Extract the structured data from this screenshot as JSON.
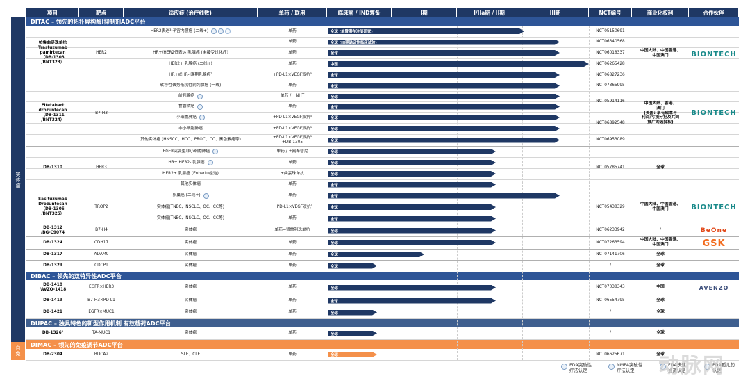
{
  "headers": [
    "项目",
    "靶点",
    "适应症 (治疗线数)",
    "单药 / 联用",
    "临床前 / IND筹备",
    "I期",
    "I/IIa期 / II期",
    "III期",
    "NCT编号",
    "商业化权利",
    "合作伙伴"
  ],
  "side_labels": {
    "solid": "实体瘤",
    "autoimmune": "自免"
  },
  "sections": {
    "ditac": "DITAC – 领先的拓扑异构酶I抑制剂ADC平台",
    "dibac": "DIBAC – 领先的双特异性ADC平台",
    "dupac": "DUPAC – 独具特色的新型作用机制 有效载荷ADC平台",
    "dimac": "DIMAC – 领先的免疫调节ADC平台"
  },
  "drugs": {
    "db1303": "帕鲁曲妥珠单抗\nTrastuzumab\npamirtecan\n（DB-1303\n/BNT323）",
    "db1311": "Elfetabart\ndrozuntecan\n（DB-1311\n/BNT324）",
    "db1310": "DB-1310",
    "db1305": "Sacituzumab\nDrozuntecan\n（DB-1305\n/BNT325）",
    "db1312": "DB-1312\n/BG-C9074",
    "db1324": "DB-1324",
    "db1317": "DB-1317",
    "db1329": "DB-1329",
    "db1418": "DB-1418\n/AVZO-1418",
    "db1419": "DB-1419",
    "db1421": "DB-1421",
    "db1326": "DB-1326⁴",
    "db2304": "DB-2304"
  },
  "targets": {
    "her2": "HER2",
    "b7h3": "B7-H3",
    "her3": "HER3",
    "trop2": "TROP2",
    "b7h4": "B7-H4",
    "cdh17": "CDH17",
    "adam9": "ADAM9",
    "cdcp1": "CDCP1",
    "egfr_her3": "EGFR×HER3",
    "b7h3_pdl1": "B7-H3×PD-L1",
    "egfr_muc1": "EGFR×MUC1",
    "ta_muc1": "TA-MUC1",
    "bdca2": "BDCA2"
  },
  "rights": {
    "cn_hk_mo": "中国大陆、中国香港、\n中国澳门",
    "cn_hk_mo_b7h3": "中国大陆、香港、\n澳门\n(美国: 享有成本与\n利润/亏损分担及共同\n推广的选择权)",
    "global": "全球",
    "slash": "/",
    "china": "中国"
  },
  "partners": {
    "biontech": "BIONTECH",
    "beone": "BeOne",
    "gsk": "GSK",
    "avenzo": "AVENZO"
  },
  "rows": [
    {
      "ind": "HER2表达³ 子宫内膜癌 (二线+)",
      "combo": "单药",
      "bar": "全球 (单臂潜在注册研究)",
      "nct": "NCT05150691"
    },
    {
      "ind": "",
      "combo": "单药",
      "bar": "全球 (III期确证性临床试验)",
      "nct": "NCT06340568"
    },
    {
      "ind": "HR+/HER2低表达 乳腺癌 (未接受过化疗)",
      "combo": "单药",
      "bar": "全球",
      "nct": "NCT06018337"
    },
    {
      "ind": "HER2+ 乳腺癌 (二线+)",
      "combo": "单药",
      "bar": "中国",
      "nct": "NCT06265428"
    },
    {
      "ind": "HR+或HR- 晚期乳腺癌²",
      "combo": "+PD-L1×VEGF双抗⁵",
      "bar": "全球",
      "nct": "NCT06827236"
    },
    {
      "ind": "转移性去势抵抗性前列腺癌 (一线)",
      "combo": "单药",
      "bar": "全球",
      "nct": "NCT07365995"
    },
    {
      "ind": "前列腺癌",
      "combo": "单药 / +NHT",
      "bar": "全球",
      "nct": ""
    },
    {
      "ind": "食管鳞癌",
      "combo": "单药",
      "bar": "全球",
      "nct": ""
    },
    {
      "ind": "小细胞肺癌",
      "combo": "+PD-L1×VEGF双抗⁵",
      "bar": "全球",
      "nct": ""
    },
    {
      "ind": "非小细胞肺癌",
      "combo": "+PD-L1×VEGF双抗⁵",
      "bar": "全球",
      "nct": ""
    },
    {
      "ind": "其他实体瘤 (HNSCC、HCC、PROC、CC、黑色素瘤等)",
      "combo": "+PD-L1×VEGF双抗⁵\n+DB-1305",
      "bar": "全球",
      "nct": "NCT06953089"
    },
    {
      "ind": "EGFR突变型非小细胞肺癌",
      "combo": "单药 / +奥希替尼",
      "bar": "全球",
      "nct": ""
    },
    {
      "ind": "HR+ HER2- 乳腺癌",
      "combo": "单药",
      "bar": "全球",
      "nct": ""
    },
    {
      "ind": "HER2+ 乳腺癌 (Enhertu经治)",
      "combo": "+曲妥珠单抗",
      "bar": "全球",
      "nct": ""
    },
    {
      "ind": "其他实体瘤",
      "combo": "单药",
      "bar": "全球",
      "nct": ""
    },
    {
      "ind": "卵巢癌 (二线+)",
      "combo": "单药",
      "bar": "全球",
      "nct": ""
    },
    {
      "ind": "实体瘤(TNBC、NSCLC、OC、CC等)",
      "combo": "+ PD-L1×VEGF双抗⁵",
      "bar": "全球",
      "nct": ""
    },
    {
      "ind": "实体瘤(TNBC、NSCLC、OC、CC等)",
      "combo": "单药",
      "bar": "全球",
      "nct": ""
    },
    {
      "ind": "实体瘤",
      "combo": "单药→替雷利珠单抗",
      "bar": "全球",
      "nct": "NCT06233942"
    },
    {
      "ind": "实体瘤",
      "combo": "单药",
      "bar": "全球",
      "nct": "NCT07263594"
    },
    {
      "ind": "实体瘤",
      "combo": "单药",
      "bar": "全球",
      "nct": "NCT07141706"
    },
    {
      "ind": "实体瘤",
      "combo": "单药",
      "bar": "全球",
      "nct": "/"
    },
    {
      "ind": "实体瘤",
      "combo": "单药",
      "bar": "全球",
      "nct": "NCT07038343"
    },
    {
      "ind": "实体瘤",
      "combo": "单药",
      "bar": "全球",
      "nct": "NCT06554795"
    },
    {
      "ind": "实体瘤",
      "combo": "单药",
      "bar": "全球",
      "nct": "/"
    },
    {
      "ind": "实体瘤",
      "combo": "单药",
      "bar": "全球",
      "nct": "/"
    },
    {
      "ind": "SLE、CLE",
      "combo": "单药",
      "bar": "全球",
      "nct": "NCT06625671"
    }
  ],
  "merged_nct": {
    "b7h3_mid": "NCT05914116",
    "b7h3_lung": "NCT06892548",
    "her3": "NCT05785741",
    "trop2": "NCT05438329"
  },
  "legend": [
    "FDA突破性\n疗法认定",
    "NMPA突破性\n疗法认定",
    "FDA快速\n通道认定",
    "FDA孤儿药\n认定"
  ],
  "watermark": "动脉网",
  "colors": {
    "navy": "#1f3864",
    "orange": "#f4904a",
    "section_blue": "#2e5597",
    "dupac": "#3f5f8f"
  }
}
